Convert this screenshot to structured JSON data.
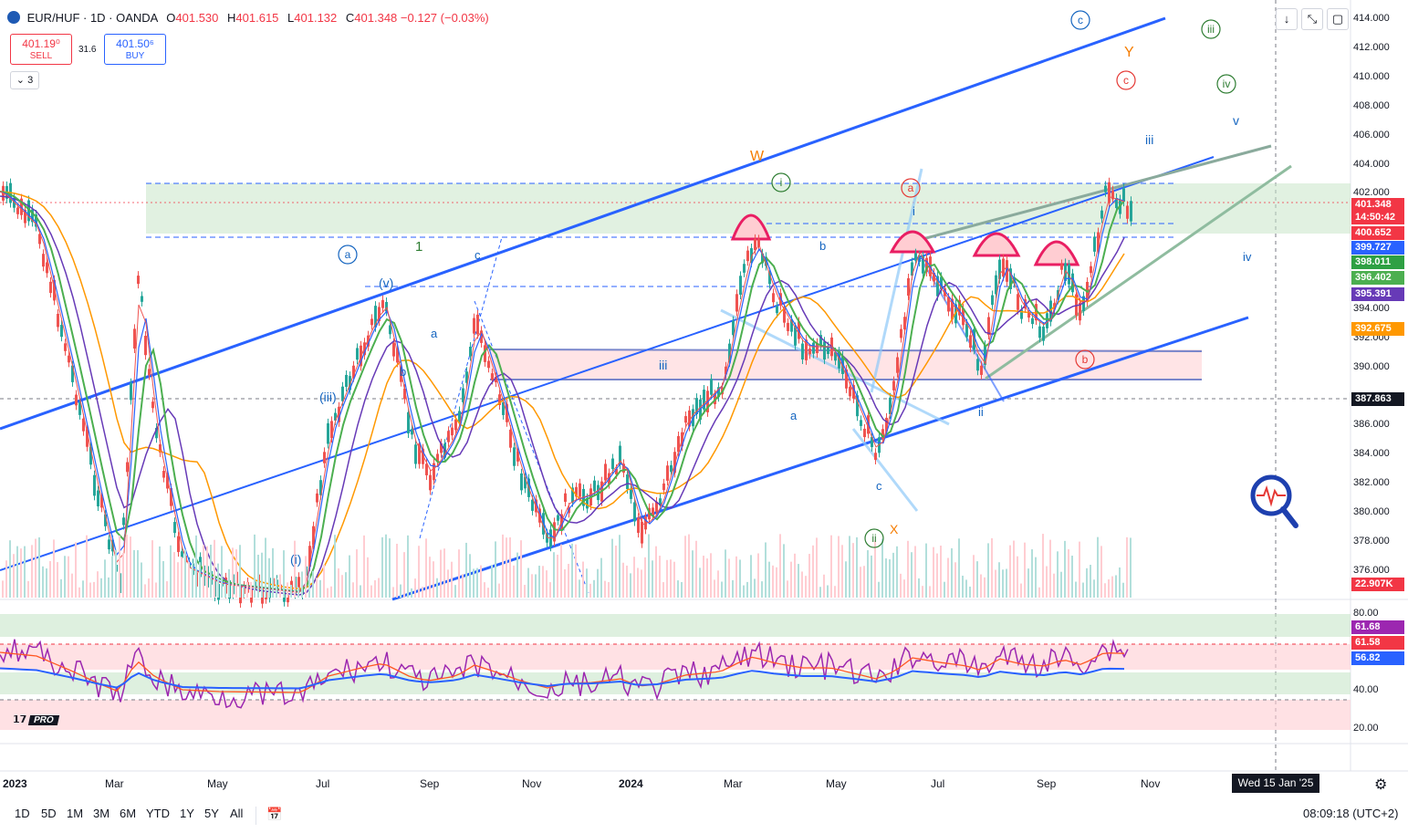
{
  "header": {
    "symbol": "EUR/HUF · 1D · OANDA",
    "open_label": "O",
    "open": "401.530",
    "high_label": "H",
    "high": "401.615",
    "low_label": "L",
    "low": "401.132",
    "close_label": "C",
    "close": "401.348",
    "change": "−0.127 (−0.03%)"
  },
  "trade": {
    "sell_price": "401.19⁰",
    "sell_label": "SELL",
    "spread": "31.6",
    "buy_price": "401.50⁶",
    "buy_label": "BUY"
  },
  "indicators_collapsed_count": "3",
  "toolbar_icons": [
    "arrow-down-icon",
    "fullscreen-toggle-icon",
    "screenshot-icon"
  ],
  "price_axis": [
    "414.000",
    "412.000",
    "410.000",
    "408.000",
    "406.000",
    "404.000",
    "402.000",
    "394.000",
    "392.000",
    "390.000",
    "386.000",
    "384.000",
    "382.000",
    "380.000",
    "378.000",
    "376.000"
  ],
  "price_tags": [
    {
      "label": "401.348",
      "color": "#f23645"
    },
    {
      "label": "14:50:42",
      "color": "#f23645"
    },
    {
      "label": "400.652",
      "color": "#f23645"
    },
    {
      "label": "399.727",
      "color": "#2962ff"
    },
    {
      "label": "398.011",
      "color": "#2ea043"
    },
    {
      "label": "396.402",
      "color": "#4caf50"
    },
    {
      "label": "395.391",
      "color": "#673ab7"
    },
    {
      "label": "392.675",
      "color": "#ff9800"
    },
    {
      "label": "387.863",
      "color": "#131722"
    },
    {
      "label": "22.907K",
      "color": "#f23645"
    }
  ],
  "rsi_axis": [
    "80.00",
    "40.00",
    "20.00"
  ],
  "rsi_tags": [
    {
      "label": "61.68",
      "color": "#9c27b0"
    },
    {
      "label": "61.58",
      "color": "#f23645"
    },
    {
      "label": "56.82",
      "color": "#2962ff"
    }
  ],
  "time_axis": [
    "2023",
    "Mar",
    "May",
    "Jul",
    "Sep",
    "Nov",
    "2024",
    "Mar",
    "May",
    "Jul",
    "Sep",
    "Nov"
  ],
  "crosshair_date": "Wed 15 Jan '25",
  "timeframes": [
    "1D",
    "5D",
    "1M",
    "3M",
    "6M",
    "YTD",
    "1Y",
    "5Y",
    "All"
  ],
  "clock": "08:09:18 (UTC+2)",
  "logo_text": "PRO",
  "wave_labels": [
    "W",
    "X",
    "Y",
    "1",
    "(v)",
    "(iii)",
    "(i)",
    "a",
    "b",
    "c",
    "i",
    "ii",
    "iii",
    "iv",
    "v",
    "A",
    "B",
    "C"
  ],
  "colors": {
    "up": "#26a69a",
    "down": "#ef5350",
    "channel": "#2962ff",
    "resistance_zone": "#c8e6c9",
    "support_zone": "#ffcdd2"
  }
}
